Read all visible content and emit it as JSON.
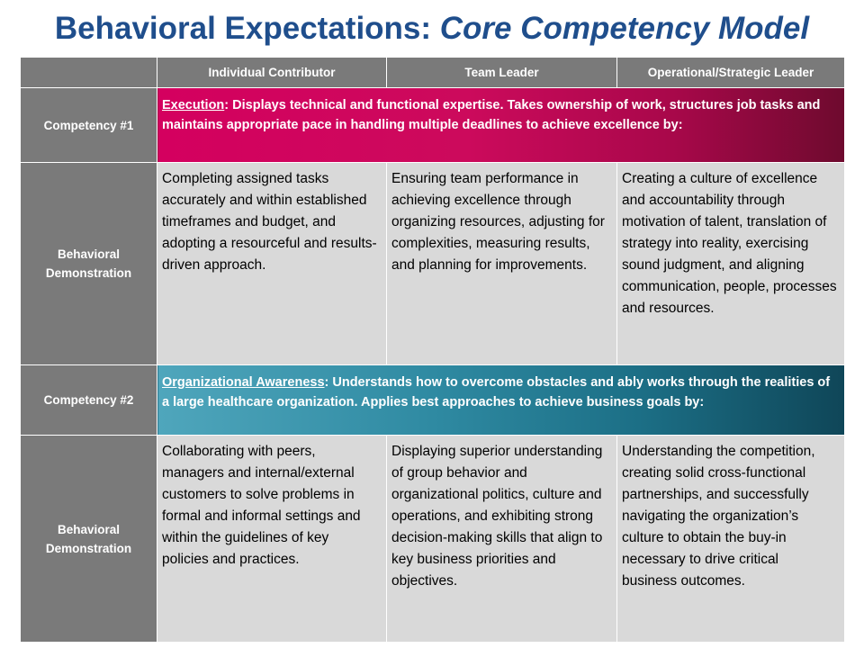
{
  "title": {
    "main": "Behavioral Expectations: ",
    "italic": "Core Competency Model"
  },
  "columns": [
    "",
    "Individual Contributor",
    "Team Leader",
    "Operational/Strategic Leader"
  ],
  "competencies": [
    {
      "label": "Competency #1",
      "term": "Execution",
      "description": ": Displays technical and functional expertise. Takes ownership of work, structures job tasks and maintains appropriate pace in handling multiple deadlines to achieve excellence by:",
      "demonstration_label": "Behavioral Demonstration",
      "demonstrations": [
        "Completing assigned tasks accurately and within established timeframes and budget, and adopting a resourceful and results-driven approach.",
        "Ensuring team performance in achieving excellence through organizing resources, adjusting for complexities, measuring results, and planning for improvements.",
        "Creating a culture of excellence and accountability through motivation of talent, translation of strategy into reality, exercising sound judgment, and aligning communication, people, processes and resources."
      ]
    },
    {
      "label": "Competency #2",
      "term": "Organizational Awareness",
      "description": ": Understands how to overcome obstacles and ably works through the realities of a large healthcare organization. Applies best approaches to achieve business goals by:",
      "demonstration_label": "Behavioral Demonstration",
      "demonstrations": [
        "Collaborating with peers, managers and internal/external customers to solve problems in formal and informal settings and within the guidelines of key policies and practices.",
        "Displaying superior understanding of group behavior and organizational politics, culture and operations, and exhibiting strong decision-making skills that align to key business priorities and objectives.",
        "Understanding the competition, creating solid cross-functional partnerships, and successfully navigating the organization’s culture to obtain the buy-in necessary to drive critical business outcomes."
      ]
    }
  ]
}
